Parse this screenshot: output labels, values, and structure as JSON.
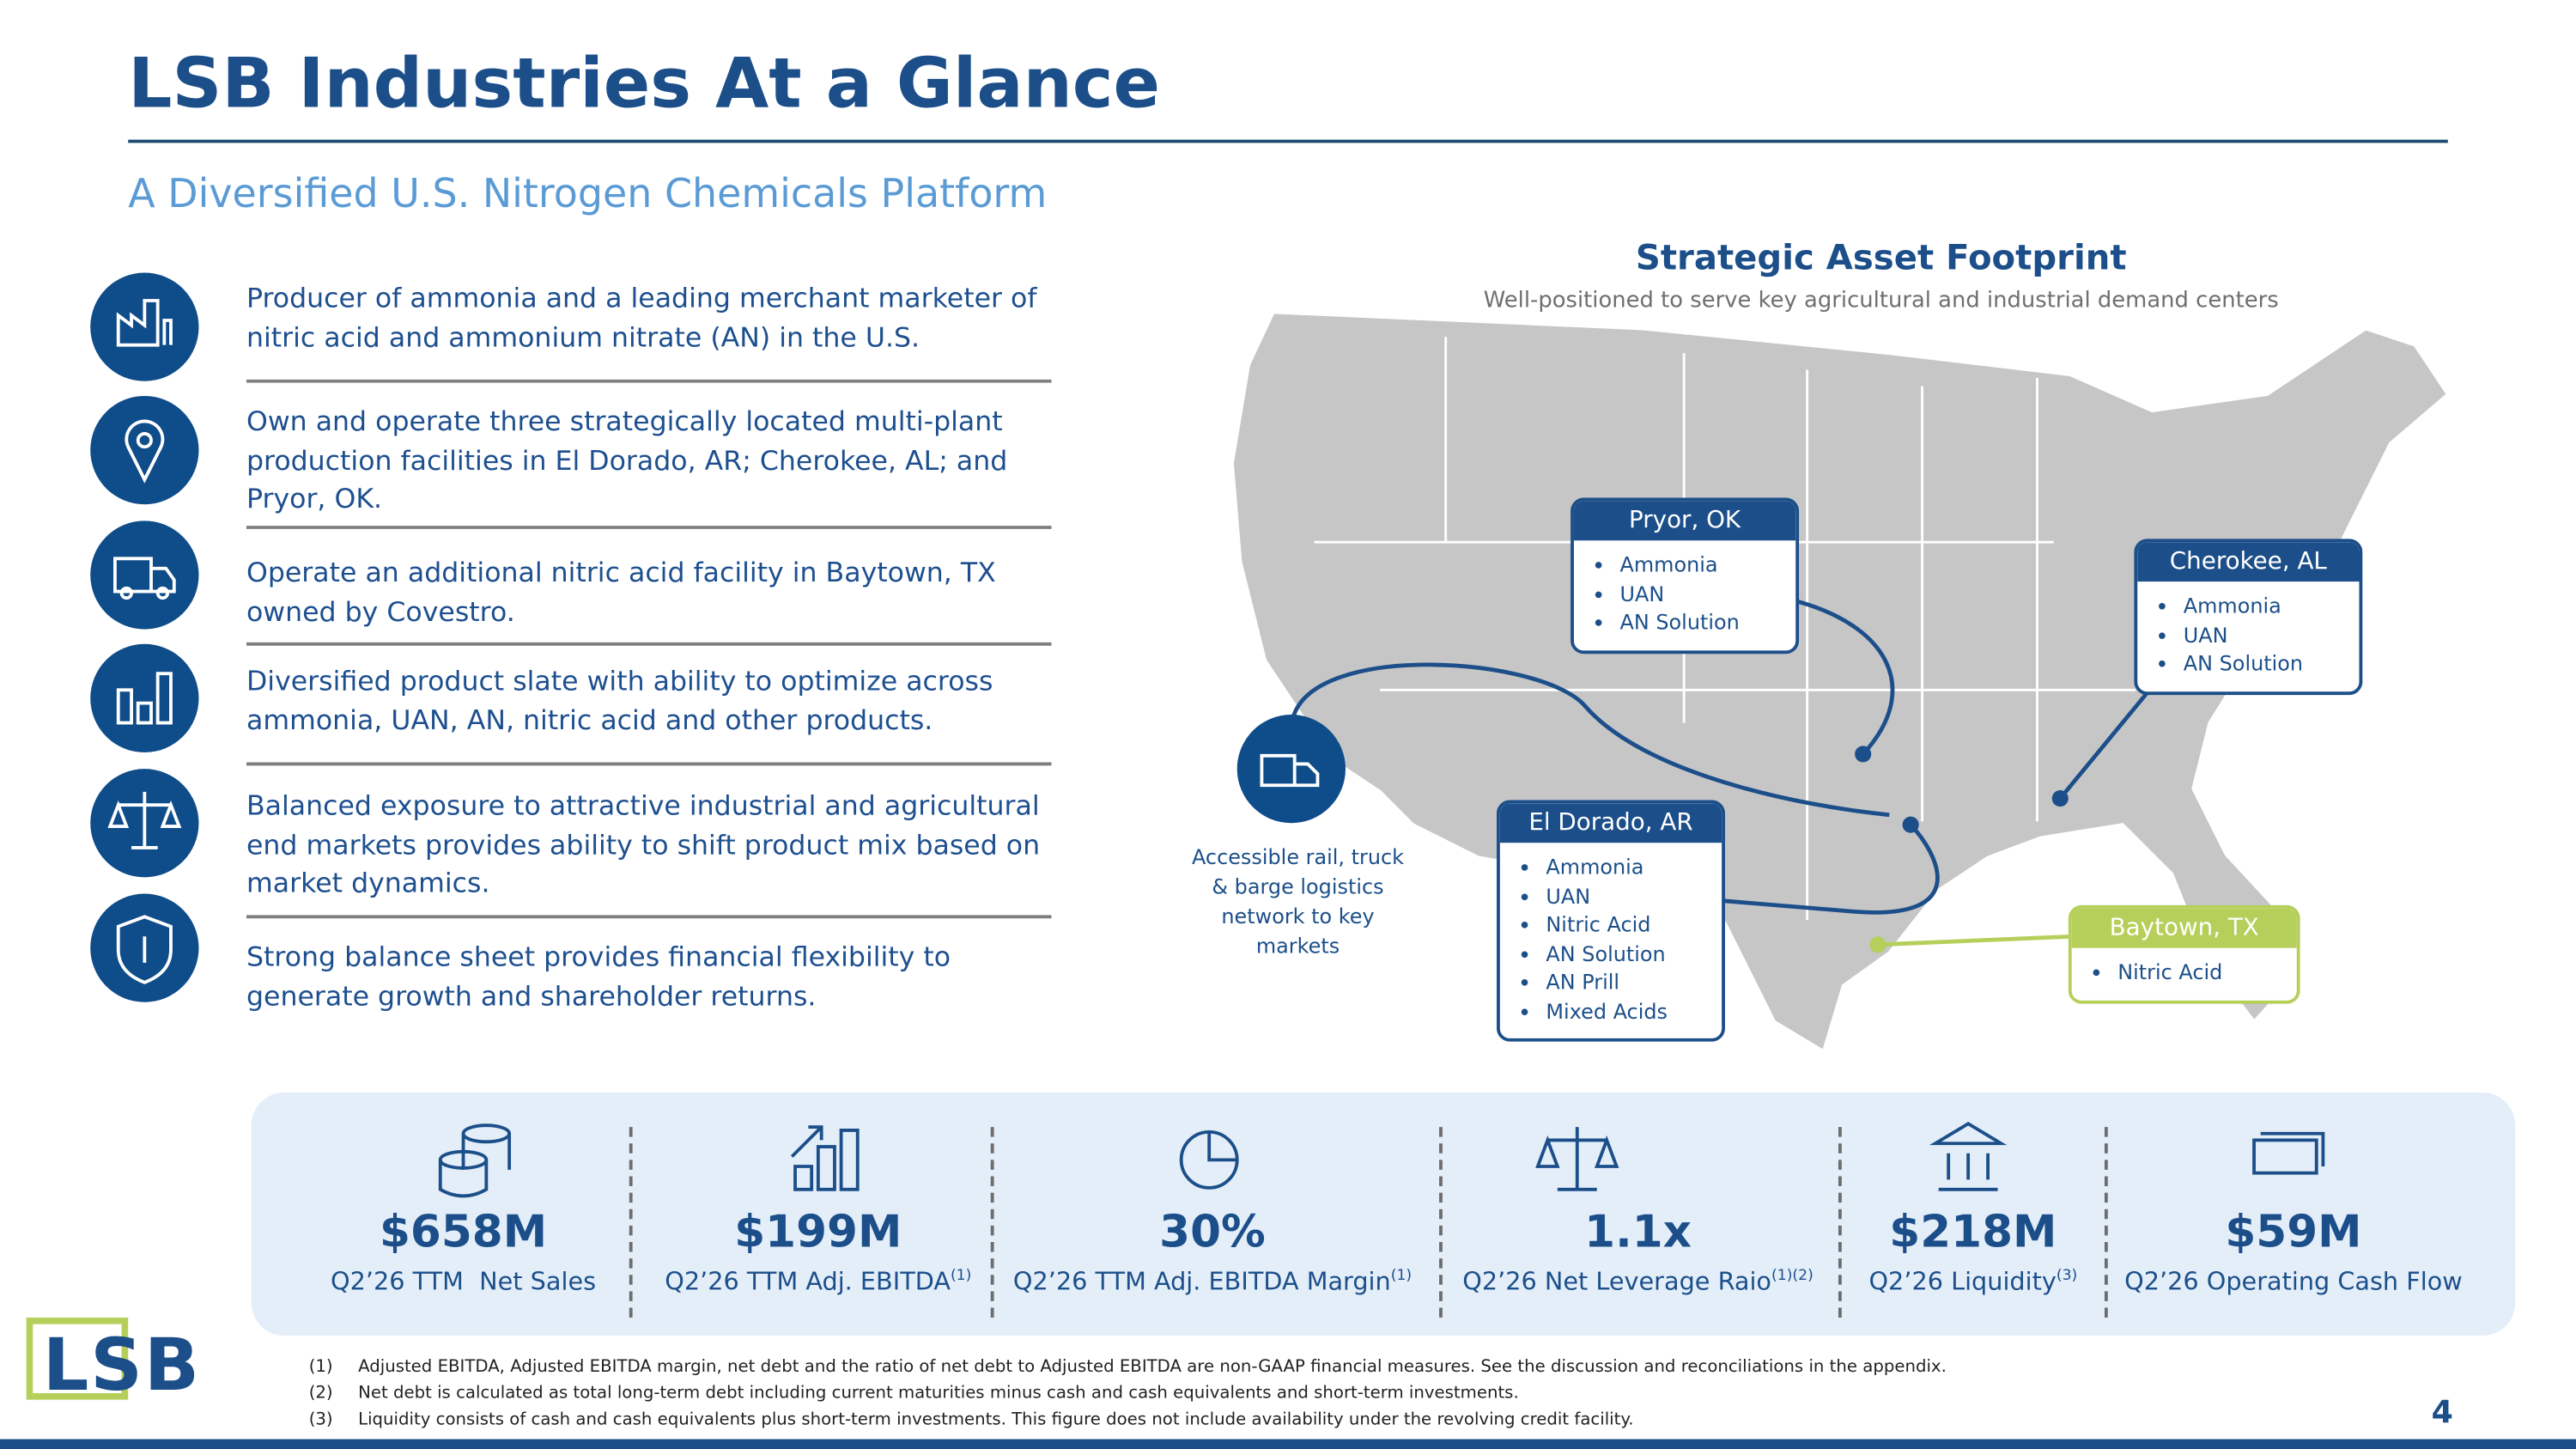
{
  "header": {
    "title": "LSB Industries At a Glance",
    "subtitle": "A Diversified U.S. Nitrogen Chemicals Platform"
  },
  "highlights": [
    "Producer of ammonia and a leading merchant marketer of nitric acid and ammonium nitrate (AN) in the U.S.",
    "Own and operate three strategically located multi-plant production facilities in El Dorado, AR; Cherokee, AL; and Pryor, OK.",
    "Operate an additional nitric acid facility in Baytown, TX owned by Covestro.",
    "Diversified product slate with ability to optimize across ammonia, UAN, AN, nitric acid and other products.",
    "Balanced exposure to attractive industrial and agricultural end markets provides ability to shift product mix based on market dynamics.",
    "Strong balance sheet provides financial flexibility to generate growth and shareholder returns."
  ],
  "map": {
    "title": "Strategic Asset Footprint",
    "subtitle": "Well-positioned to serve key agricultural and industrial demand centers",
    "sites": [
      {
        "name": "Pryor, OK",
        "products": [
          "Ammonia",
          "UAN",
          "AN Solution"
        ]
      },
      {
        "name": "Cherokee, AL",
        "products": [
          "Ammonia",
          "UAN",
          "AN Solution"
        ]
      },
      {
        "name": "El Dorado, AR",
        "products": [
          "Ammonia",
          "UAN",
          "Nitric Acid",
          "AN Solution",
          "AN Prill",
          "Mixed Acids"
        ]
      },
      {
        "name": "Baytown, TX",
        "products": [
          "Nitric Acid"
        ]
      }
    ],
    "logistics": "Accessible rail, truck & barge logistics network to key markets"
  },
  "metrics": [
    {
      "value": "$658M",
      "label": "Q2’26 TTM  Net Sales"
    },
    {
      "value": "$199M",
      "label": "Q2’26 TTM Adj. EBITDA",
      "note": "(1)"
    },
    {
      "value": "30%",
      "label": "Q2’26 TTM Adj. EBITDA Margin",
      "note": "(1)"
    },
    {
      "value": "1.1x",
      "label": "Q2’26 Net Leverage Raio",
      "note": "(1)(2)"
    },
    {
      "value": "$218M",
      "label": "Q2’26 Liquidity",
      "note": "(3)"
    },
    {
      "value": "$59M",
      "label": "Q2’26 Operating Cash Flow"
    }
  ],
  "footnotes": [
    {
      "marker": "(1)",
      "text": "Adjusted EBITDA, Adjusted EBITDA margin, net debt and the ratio of net debt to Adjusted EBITDA are non-GAAP financial measures. See the discussion and reconciliations in the appendix."
    },
    {
      "marker": "(2)",
      "text": "Net debt is calculated as total long-term debt including current maturities minus cash and cash equivalents and short-term investments."
    },
    {
      "marker": "(3)",
      "text": "Liquidity consists of cash and cash equivalents plus short-term investments. This figure does not include availability under the revolving credit facility."
    }
  ],
  "footer": {
    "logo": "LSB",
    "page": "4"
  }
}
